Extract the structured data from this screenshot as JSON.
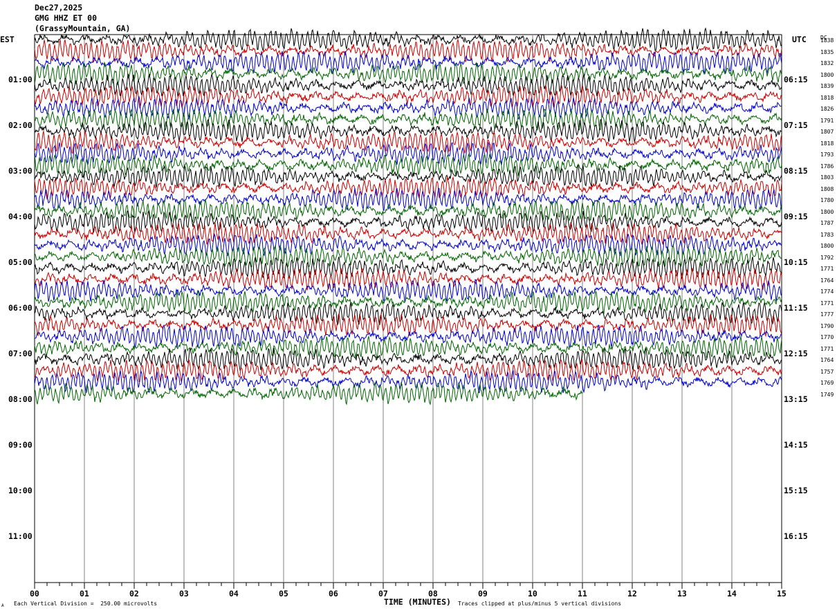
{
  "header": {
    "date": "Dec27,2025",
    "station": "GMG HHZ ET 00",
    "location": "(GrassyMountain, GA)"
  },
  "axes": {
    "left_tz": "EST",
    "right_tz": "UTC",
    "dc_label": "DC",
    "x_title": "TIME (MINUTES)",
    "x_ticks": [
      "00",
      "01",
      "02",
      "03",
      "04",
      "05",
      "06",
      "07",
      "08",
      "09",
      "10",
      "11",
      "12",
      "13",
      "14",
      "15"
    ],
    "left_hours": [
      "01:00",
      "02:00",
      "03:00",
      "04:00",
      "05:00",
      "06:00",
      "07:00",
      "08:00",
      "09:00",
      "10:00",
      "11:00"
    ],
    "right_hours": [
      "06:15",
      "07:15",
      "08:15",
      "09:15",
      "10:15",
      "11:15",
      "12:15",
      "13:15",
      "14:15",
      "15:15",
      "16:15"
    ]
  },
  "footer": {
    "scale_note": "Each Vertical Division =  250.00 microvolts",
    "clip_note": "Traces clipped at plus/minus 5 vertical divisions",
    "corner_mark": "A"
  },
  "colors": {
    "trace_cycle": [
      "#000000",
      "#cc0000",
      "#0000cc",
      "#006600"
    ],
    "grid": "#808080"
  },
  "chart_data": {
    "type": "line",
    "title": "",
    "xlabel": "TIME (MINUTES)",
    "xlim": [
      0,
      15
    ],
    "trace_interval_minutes": 15,
    "trace_count": 32,
    "dc_offsets": [
      1838,
      1835,
      1832,
      1800,
      1839,
      1818,
      1826,
      1791,
      1807,
      1818,
      1793,
      1786,
      1803,
      1808,
      1780,
      1800,
      1787,
      1783,
      1800,
      1792,
      1771,
      1764,
      1774,
      1771,
      1777,
      1790,
      1770,
      1771,
      1764,
      1757,
      1769,
      1749
    ],
    "last_trace_end_minutes": 11
  }
}
